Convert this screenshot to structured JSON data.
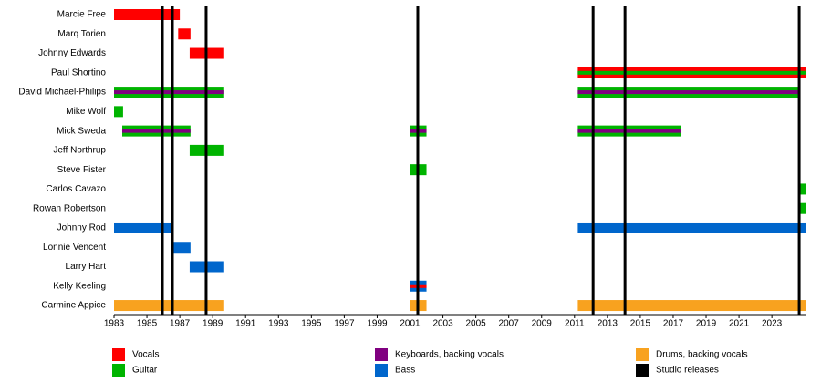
{
  "chart_data": {
    "type": "timeline",
    "xlim": [
      1983,
      2025.1
    ],
    "xticks": [
      1983,
      1985,
      1987,
      1989,
      1991,
      1993,
      1995,
      1997,
      1999,
      2001,
      2003,
      2005,
      2007,
      2009,
      2011,
      2013,
      2015,
      2017,
      2019,
      2021,
      2023
    ],
    "members": [
      {
        "name": "Marcie Free",
        "periods": [
          {
            "start": 1983,
            "end": 1987.0,
            "color": "#ff0000"
          }
        ]
      },
      {
        "name": "Marq Torien",
        "periods": [
          {
            "start": 1986.9,
            "end": 1987.65,
            "color": "#ff0000"
          }
        ]
      },
      {
        "name": "Johnny Edwards",
        "periods": [
          {
            "start": 1987.6,
            "end": 1989.7,
            "color": "#ff0000"
          }
        ]
      },
      {
        "name": "Paul Shortino",
        "periods": [
          {
            "start": 2011.2,
            "end": 2025.1,
            "color": "#ff0000",
            "stripe": "#00b400"
          }
        ]
      },
      {
        "name": "David Michael-Philips",
        "periods": [
          {
            "start": 1983,
            "end": 1989.7,
            "color": "#00b400",
            "stripe": "#800080"
          },
          {
            "start": 2011.2,
            "end": 2024.7,
            "color": "#00b400",
            "stripe": "#800080"
          }
        ]
      },
      {
        "name": "Mike Wolf",
        "periods": [
          {
            "start": 1983,
            "end": 1983.55,
            "color": "#00b400"
          }
        ]
      },
      {
        "name": "Mick Sweda",
        "periods": [
          {
            "start": 1983.5,
            "end": 1987.65,
            "color": "#00b400",
            "stripe": "#800080"
          },
          {
            "start": 2001.0,
            "end": 2002.0,
            "color": "#00b400",
            "stripe": "#800080"
          },
          {
            "start": 2011.2,
            "end": 2017.45,
            "color": "#00b400",
            "stripe": "#800080"
          }
        ]
      },
      {
        "name": "Jeff Northrup",
        "periods": [
          {
            "start": 1987.6,
            "end": 1989.7,
            "color": "#00b400"
          }
        ]
      },
      {
        "name": "Steve Fister",
        "periods": [
          {
            "start": 2001.0,
            "end": 2002.0,
            "color": "#00b400"
          }
        ]
      },
      {
        "name": "Carlos Cavazo",
        "periods": [
          {
            "start": 2024.7,
            "end": 2025.1,
            "color": "#00b400"
          }
        ]
      },
      {
        "name": "Rowan Robertson",
        "periods": [
          {
            "start": 2024.7,
            "end": 2025.1,
            "color": "#00b400"
          }
        ]
      },
      {
        "name": "Johnny Rod",
        "periods": [
          {
            "start": 1983,
            "end": 1986.55,
            "color": "#0066cc"
          },
          {
            "start": 2011.2,
            "end": 2025.1,
            "color": "#0066cc"
          }
        ]
      },
      {
        "name": "Lonnie Vencent",
        "periods": [
          {
            "start": 1986.55,
            "end": 1987.65,
            "color": "#0066cc"
          }
        ]
      },
      {
        "name": "Larry Hart",
        "periods": [
          {
            "start": 1987.6,
            "end": 1989.7,
            "color": "#0066cc"
          }
        ]
      },
      {
        "name": "Kelly Keeling",
        "periods": [
          {
            "start": 2001.0,
            "end": 2002.0,
            "color": "#0066cc",
            "stripe": "#ff0000"
          }
        ]
      },
      {
        "name": "Carmine Appice",
        "periods": [
          {
            "start": 1983,
            "end": 1989.7,
            "color": "#f8a21f"
          },
          {
            "start": 2001.0,
            "end": 2002.0,
            "color": "#f8a21f"
          },
          {
            "start": 2011.2,
            "end": 2025.1,
            "color": "#f8a21f"
          }
        ]
      }
    ],
    "releases": [
      1985.94,
      1986.55,
      1988.6,
      2001.47,
      2012.13,
      2014.07,
      2024.66
    ],
    "release_color": "#000000",
    "legend": [
      {
        "name": "Vocals",
        "color": "#ff0000"
      },
      {
        "name": "Guitar",
        "color": "#00b400"
      },
      {
        "name": "Keyboards, backing vocals",
        "color": "#800080"
      },
      {
        "name": "Bass",
        "color": "#0066cc"
      },
      {
        "name": "Drums, backing vocals",
        "color": "#f8a21f"
      },
      {
        "name": "Studio releases",
        "color": "#000000"
      }
    ]
  }
}
